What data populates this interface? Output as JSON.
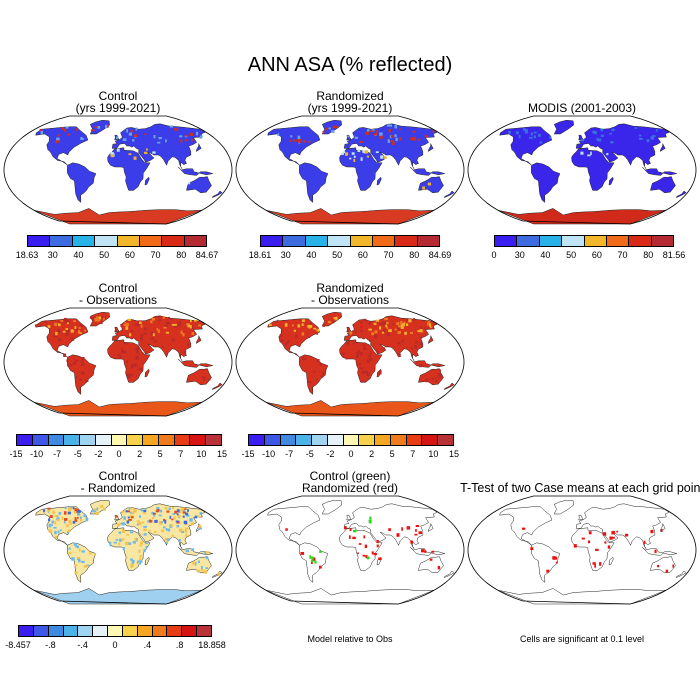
{
  "title": "ANN ASA (% reflected)",
  "palettes": {
    "abs": [
      "#3a1ef0",
      "#3d6ce0",
      "#27b2e8",
      "#bfe4f5",
      "#f2b62a",
      "#f06a18",
      "#d92a18",
      "#b52a32"
    ],
    "diff": [
      "#3a1ef0",
      "#3d58e6",
      "#3d8ae0",
      "#4ab2e6",
      "#9fd4f0",
      "#e4f2f8",
      "#fff7b4",
      "#f8d24a",
      "#f5a623",
      "#f07b1e",
      "#e83c14",
      "#d61414",
      "#b83238"
    ]
  },
  "panels": [
    {
      "id": "control",
      "title1": "Control",
      "title2": "(yrs 1999-2021)",
      "legend": "abs",
      "ticks": [
        "18.63",
        "30",
        "40",
        "50",
        "60",
        "70",
        "80",
        "84.67"
      ]
    },
    {
      "id": "randomized",
      "title1": "Randomized",
      "title2": "(yrs 1999-2021)",
      "legend": "abs",
      "ticks": [
        "18.61",
        "30",
        "40",
        "50",
        "60",
        "70",
        "80",
        "84.69"
      ]
    },
    {
      "id": "modis",
      "title1": "MODIS (2001-2003)",
      "title2": "",
      "legend": "abs",
      "ticks": [
        "0",
        "30",
        "40",
        "50",
        "60",
        "70",
        "80",
        "81.56"
      ]
    },
    {
      "id": "control-obs",
      "title1": "Control",
      "title2": "- Observations",
      "legend": "diff",
      "ticks": [
        "-15",
        "-10",
        "-7",
        "-5",
        "-2",
        "0",
        "2",
        "5",
        "7",
        "10",
        "15"
      ]
    },
    {
      "id": "randomized-obs",
      "title1": "Randomized",
      "title2": "- Observations",
      "legend": "diff",
      "ticks": [
        "-15",
        "-10",
        "-7",
        "-5",
        "-2",
        "0",
        "2",
        "5",
        "7",
        "10",
        "15"
      ]
    },
    {
      "id": "control-randomized",
      "title1": "Control",
      "title2": "- Randomized",
      "legend": "diff",
      "ticks": [
        "-8.457",
        "-.8",
        "-.4",
        "0",
        ".4",
        ".8",
        "18.858"
      ]
    },
    {
      "id": "model-relative",
      "title1": "Control (green)",
      "title2": "Randomized (red)",
      "legend": "none",
      "caption": "Model relative to Obs"
    },
    {
      "id": "ttest",
      "title1": "T-Test of two Case means at each grid point",
      "title2": "",
      "legend": "none",
      "caption": "Cells are significant at 0.1 level"
    }
  ]
}
